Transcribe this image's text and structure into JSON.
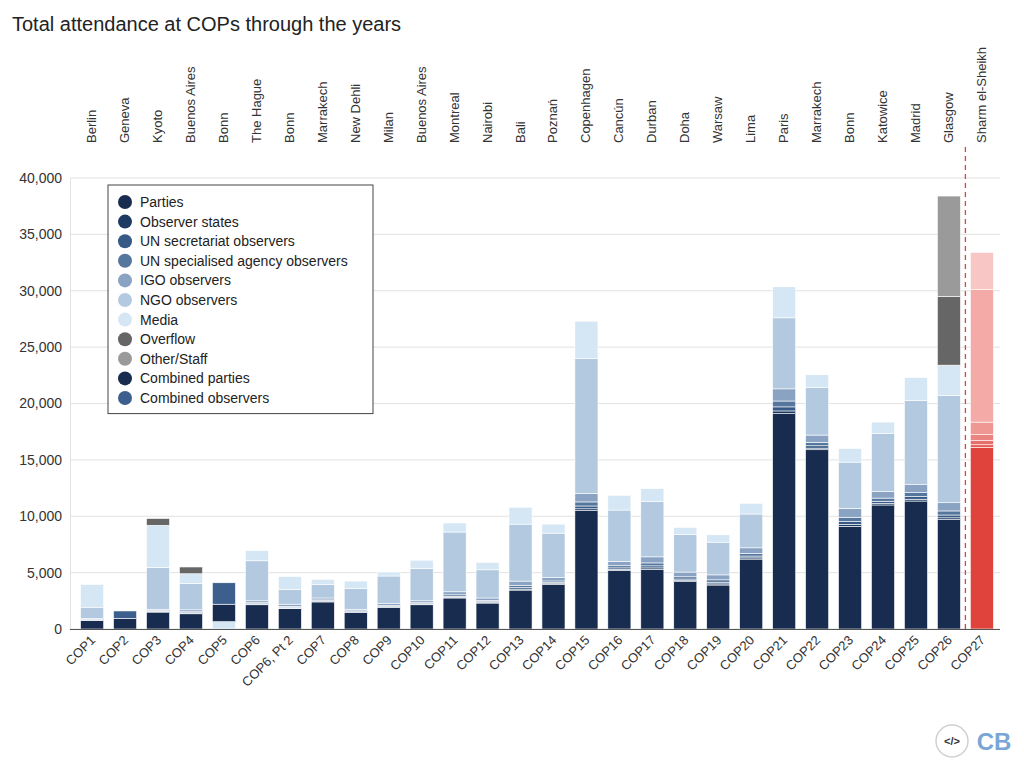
{
  "chart_data": {
    "type": "bar",
    "title": "Total attendance at COPs through the years",
    "stacked": true,
    "grid": true,
    "legend": "top-left",
    "categories": [
      "COP1",
      "COP2",
      "COP3",
      "COP4",
      "COP5",
      "COP6",
      "COP6, Pt 2",
      "COP7",
      "COP8",
      "COP9",
      "COP10",
      "COP11",
      "COP12",
      "COP13",
      "COP14",
      "COP15",
      "COP16",
      "COP17",
      "COP18",
      "COP19",
      "COP20",
      "COP21",
      "COP22",
      "COP23",
      "COP24",
      "COP25",
      "COP26",
      "COP27"
    ],
    "locations": [
      "Berlin",
      "Geneva",
      "Kyoto",
      "Buenos Aires",
      "Bonn",
      "The Hague",
      "Bonn",
      "Marrakech",
      "New Dehli",
      "Milan",
      "Buenos Aires",
      "Montreal",
      "Nairobi",
      "Bali",
      "Poznań",
      "Copenhagen",
      "Cancún",
      "Durban",
      "Doha",
      "Warsaw",
      "Lima",
      "Paris",
      "Marrakech",
      "Bonn",
      "Katowice",
      "Madrid",
      "Glasgow",
      "Sharm el-Sheikh"
    ],
    "ylim": [
      0,
      40000
    ],
    "yticks": [
      0,
      {
        "value": 5000,
        "label": "5,000"
      },
      {
        "value": 10000,
        "label": "10,000"
      },
      {
        "value": 15000,
        "label": "15,000"
      },
      {
        "value": 20000,
        "label": "20,000"
      },
      {
        "value": 25000,
        "label": "25,000"
      },
      {
        "value": 30000,
        "label": "30,000"
      },
      {
        "value": 35000,
        "label": "35,000"
      },
      {
        "value": 40000,
        "label": "40,000"
      }
    ],
    "credits": {
      "icon": "</>",
      "brand": "CB"
    },
    "series": [
      {
        "name": "Parties",
        "color": "#172c4e",
        "colors": [
          "#172c4e",
          "#172c4e",
          "#172c4e",
          "#172c4e",
          "#172c4e",
          "#172c4e",
          "#172c4e",
          "#172c4e",
          "#172c4e",
          "#172c4e",
          "#172c4e",
          "#172c4e",
          "#172c4e",
          "#172c4e",
          "#172c4e",
          "#172c4e",
          "#172c4e",
          "#172c4e",
          "#172c4e",
          "#172c4e",
          "#172c4e",
          "#172c4e",
          "#172c4e",
          "#172c4e",
          "#172c4e",
          "#172c4e",
          "#172c4e",
          "#e0433b"
        ],
        "values": [
          750,
          0,
          1500,
          1350,
          0,
          2150,
          1800,
          2400,
          1450,
          1900,
          2150,
          2750,
          2300,
          3450,
          3950,
          10500,
          5200,
          5300,
          4200,
          3900,
          6200,
          19100,
          15900,
          9100,
          11000,
          11350,
          9700,
          16100
        ]
      },
      {
        "name": "Observer states",
        "color": "#1d3a62",
        "colors": [
          "#1d3a62",
          "#1d3a62",
          "#1d3a62",
          "#1d3a62",
          "#1d3a62",
          "#1d3a62",
          "#1d3a62",
          "#1d3a62",
          "#1d3a62",
          "#1d3a62",
          "#1d3a62",
          "#1d3a62",
          "#1d3a62",
          "#1d3a62",
          "#1d3a62",
          "#1d3a62",
          "#1d3a62",
          "#1d3a62",
          "#1d3a62",
          "#1d3a62",
          "#1d3a62",
          "#1d3a62",
          "#1d3a62",
          "#1d3a62",
          "#1d3a62",
          "#1d3a62",
          "#1d3a62",
          "#e45a53"
        ],
        "values": [
          20,
          0,
          30,
          40,
          0,
          40,
          50,
          40,
          40,
          40,
          40,
          60,
          50,
          90,
          70,
          160,
          90,
          120,
          90,
          100,
          110,
          240,
          140,
          170,
          130,
          160,
          160,
          240
        ]
      },
      {
        "name": "UN secretariat observers",
        "color": "#365a85",
        "colors": [
          "#365a85",
          "#365a85",
          "#365a85",
          "#365a85",
          "#365a85",
          "#365a85",
          "#365a85",
          "#365a85",
          "#365a85",
          "#365a85",
          "#365a85",
          "#365a85",
          "#365a85",
          "#365a85",
          "#365a85",
          "#365a85",
          "#365a85",
          "#365a85",
          "#365a85",
          "#365a85",
          "#365a85",
          "#365a85",
          "#365a85",
          "#365a85",
          "#365a85",
          "#365a85",
          "#365a85",
          "#e8706a"
        ],
        "values": [
          30,
          0,
          40,
          60,
          0,
          60,
          70,
          60,
          50,
          60,
          60,
          90,
          80,
          130,
          100,
          250,
          130,
          180,
          140,
          150,
          160,
          360,
          210,
          260,
          200,
          240,
          250,
          370
        ]
      },
      {
        "name": "UN specialised agency observers",
        "color": "#56779d",
        "colors": [
          "#56779d",
          "#56779d",
          "#56779d",
          "#56779d",
          "#56779d",
          "#56779d",
          "#56779d",
          "#56779d",
          "#56779d",
          "#56779d",
          "#56779d",
          "#56779d",
          "#56779d",
          "#56779d",
          "#56779d",
          "#56779d",
          "#56779d",
          "#56779d",
          "#56779d",
          "#56779d",
          "#56779d",
          "#56779d",
          "#56779d",
          "#56779d",
          "#56779d",
          "#56779d",
          "#56779d",
          "#eb8480"
        ],
        "values": [
          40,
          0,
          60,
          80,
          0,
          80,
          90,
          80,
          70,
          80,
          80,
          130,
          100,
          190,
          140,
          360,
          190,
          260,
          200,
          210,
          240,
          520,
          310,
          380,
          280,
          340,
          360,
          530
        ]
      },
      {
        "name": "IGO observers",
        "color": "#8aa3c2",
        "colors": [
          "#8aa3c2",
          "#8aa3c2",
          "#8aa3c2",
          "#8aa3c2",
          "#8aa3c2",
          "#8aa3c2",
          "#8aa3c2",
          "#8aa3c2",
          "#8aa3c2",
          "#8aa3c2",
          "#8aa3c2",
          "#8aa3c2",
          "#8aa3c2",
          "#8aa3c2",
          "#8aa3c2",
          "#8aa3c2",
          "#8aa3c2",
          "#8aa3c2",
          "#8aa3c2",
          "#8aa3c2",
          "#8aa3c2",
          "#8aa3c2",
          "#8aa3c2",
          "#8aa3c2",
          "#8aa3c2",
          "#8aa3c2",
          "#8aa3c2",
          "#ee9793"
        ],
        "values": [
          90,
          0,
          120,
          170,
          0,
          170,
          190,
          170,
          140,
          170,
          170,
          270,
          220,
          390,
          290,
          730,
          390,
          540,
          420,
          440,
          490,
          1080,
          640,
          790,
          590,
          710,
          730,
          1110
        ]
      },
      {
        "name": "NGO observers",
        "color": "#b3c9e0",
        "colors": [
          "#b3c9e0",
          "#b3c9e0",
          "#b3c9e0",
          "#b3c9e0",
          "#b3c9e0",
          "#b3c9e0",
          "#b3c9e0",
          "#b3c9e0",
          "#b3c9e0",
          "#b3c9e0",
          "#b3c9e0",
          "#b3c9e0",
          "#b3c9e0",
          "#b3c9e0",
          "#b3c9e0",
          "#b3c9e0",
          "#b3c9e0",
          "#b3c9e0",
          "#b3c9e0",
          "#b3c9e0",
          "#b3c9e0",
          "#b3c9e0",
          "#b3c9e0",
          "#b3c9e0",
          "#b3c9e0",
          "#b3c9e0",
          "#b3c9e0",
          "#f4aaa7"
        ],
        "values": [
          1000,
          0,
          3700,
          2350,
          0,
          3550,
          1300,
          1200,
          1850,
          2450,
          2850,
          5300,
          2500,
          5050,
          3950,
          12000,
          4550,
          4900,
          3350,
          2900,
          3000,
          6300,
          4200,
          4100,
          5150,
          7450,
          9500,
          11750
        ]
      },
      {
        "name": "Media",
        "color": "#d5e6f4",
        "colors": [
          "#d5e6f4",
          "#d5e6f4",
          "#d5e6f4",
          "#d5e6f4",
          "#d5e6f4",
          "#d5e6f4",
          "#d5e6f4",
          "#d5e6f4",
          "#d5e6f4",
          "#d5e6f4",
          "#d5e6f4",
          "#d5e6f4",
          "#d5e6f4",
          "#d5e6f4",
          "#d5e6f4",
          "#d5e6f4",
          "#d5e6f4",
          "#d5e6f4",
          "#d5e6f4",
          "#d5e6f4",
          "#d5e6f4",
          "#d5e6f4",
          "#d5e6f4",
          "#d5e6f4",
          "#d5e6f4",
          "#d5e6f4",
          "#d5e6f4",
          "#f8c7c5"
        ],
        "values": [
          2020,
          0,
          3750,
          850,
          650,
          900,
          1150,
          450,
          650,
          350,
          750,
          800,
          650,
          1500,
          800,
          3300,
          1300,
          1150,
          600,
          650,
          950,
          2750,
          1150,
          1200,
          1000,
          2050,
          2700,
          3300
        ]
      },
      {
        "name": "Overflow",
        "color": "#666666",
        "colors": [
          "#666666",
          "#666666",
          "#666666",
          "#666666",
          "#666666",
          "#666666",
          "#666666",
          "#666666",
          "#666666",
          "#666666",
          "#666666",
          "#666666",
          "#666666",
          "#666666",
          "#666666",
          "#666666",
          "#666666",
          "#666666",
          "#666666",
          "#666666",
          "#666666",
          "#666666",
          "#666666",
          "#666666",
          "#666666",
          "#666666",
          "#666666",
          "#666666"
        ],
        "values": [
          0,
          0,
          600,
          600,
          0,
          0,
          0,
          0,
          0,
          0,
          0,
          0,
          0,
          0,
          0,
          0,
          0,
          0,
          0,
          0,
          0,
          0,
          0,
          0,
          0,
          0,
          6100,
          0
        ]
      },
      {
        "name": "Other/Staff",
        "color": "#9a9a9a",
        "colors": [
          "#9a9a9a",
          "#9a9a9a",
          "#9a9a9a",
          "#9a9a9a",
          "#9a9a9a",
          "#9a9a9a",
          "#9a9a9a",
          "#9a9a9a",
          "#9a9a9a",
          "#9a9a9a",
          "#9a9a9a",
          "#9a9a9a",
          "#9a9a9a",
          "#9a9a9a",
          "#9a9a9a",
          "#9a9a9a",
          "#9a9a9a",
          "#9a9a9a",
          "#9a9a9a",
          "#9a9a9a",
          "#9a9a9a",
          "#9a9a9a",
          "#9a9a9a",
          "#9a9a9a",
          "#9a9a9a",
          "#9a9a9a",
          "#9a9a9a",
          "#9a9a9a"
        ],
        "values": [
          0,
          0,
          0,
          0,
          0,
          0,
          0,
          0,
          0,
          0,
          0,
          0,
          0,
          0,
          0,
          0,
          0,
          0,
          0,
          0,
          0,
          0,
          0,
          0,
          0,
          0,
          8900,
          0
        ]
      },
      {
        "name": "Combined parties",
        "color": "#172c4e",
        "colors": [
          "#172c4e",
          "#172c4e",
          "#172c4e",
          "#172c4e",
          "#172c4e",
          "#172c4e",
          "#172c4e",
          "#172c4e",
          "#172c4e",
          "#172c4e",
          "#172c4e",
          "#172c4e",
          "#172c4e",
          "#172c4e",
          "#172c4e",
          "#172c4e",
          "#172c4e",
          "#172c4e",
          "#172c4e",
          "#172c4e",
          "#172c4e",
          "#172c4e",
          "#172c4e",
          "#172c4e",
          "#172c4e",
          "#172c4e",
          "#172c4e",
          "#172c4e"
        ],
        "values": [
          0,
          950,
          0,
          0,
          1550,
          0,
          0,
          0,
          0,
          0,
          0,
          0,
          0,
          0,
          0,
          0,
          0,
          0,
          0,
          0,
          0,
          0,
          0,
          0,
          0,
          0,
          0,
          0
        ]
      },
      {
        "name": "Combined observers",
        "color": "#3c5f8d",
        "colors": [
          "#3c5f8d",
          "#3c5f8d",
          "#3c5f8d",
          "#3c5f8d",
          "#3c5f8d",
          "#3c5f8d",
          "#3c5f8d",
          "#3c5f8d",
          "#3c5f8d",
          "#3c5f8d",
          "#3c5f8d",
          "#3c5f8d",
          "#3c5f8d",
          "#3c5f8d",
          "#3c5f8d",
          "#3c5f8d",
          "#3c5f8d",
          "#3c5f8d",
          "#3c5f8d",
          "#3c5f8d",
          "#3c5f8d",
          "#3c5f8d",
          "#3c5f8d",
          "#3c5f8d",
          "#3c5f8d",
          "#3c5f8d",
          "#3c5f8d",
          "#3c5f8d"
        ],
        "values": [
          0,
          650,
          0,
          0,
          1900,
          0,
          0,
          0,
          0,
          0,
          0,
          0,
          0,
          0,
          0,
          0,
          0,
          0,
          0,
          0,
          0,
          0,
          0,
          0,
          0,
          0,
          0,
          0
        ]
      }
    ]
  }
}
